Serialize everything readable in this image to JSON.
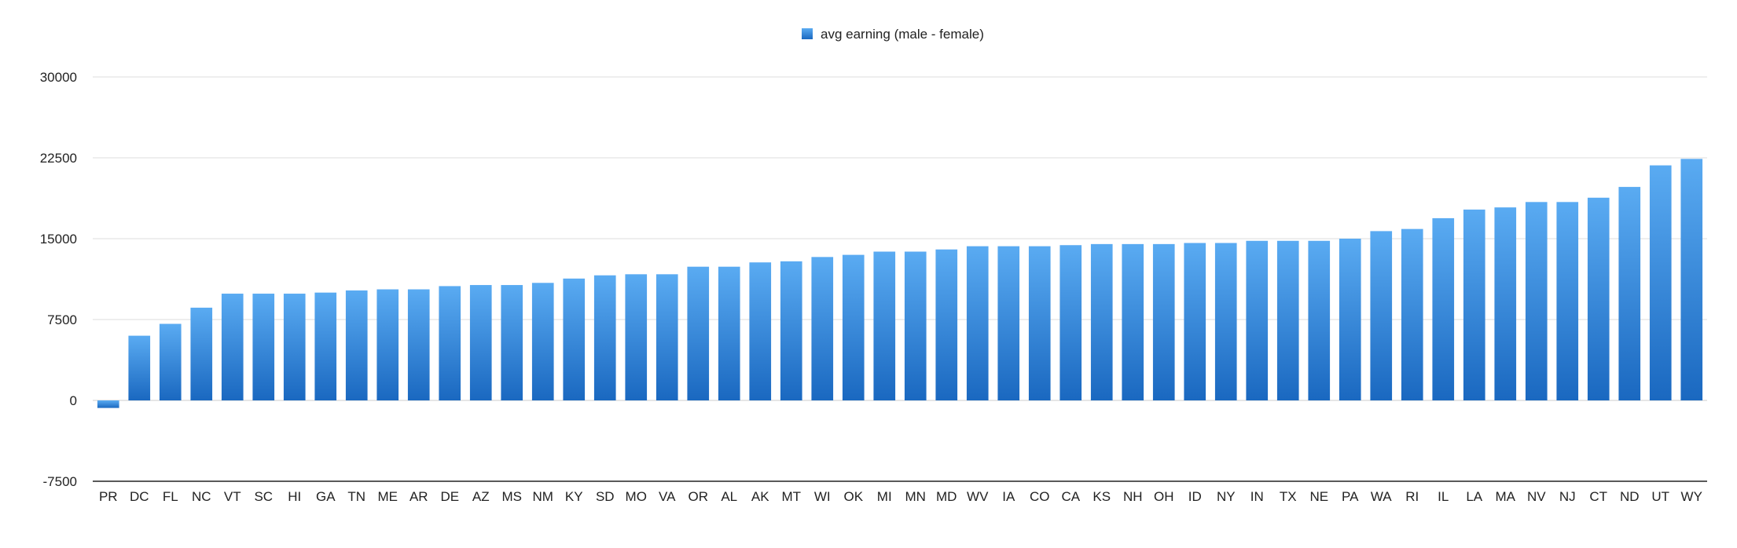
{
  "chart_data": {
    "type": "bar",
    "categories": [
      "PR",
      "DC",
      "FL",
      "NC",
      "VT",
      "SC",
      "HI",
      "GA",
      "TN",
      "ME",
      "AR",
      "DE",
      "AZ",
      "MS",
      "NM",
      "KY",
      "SD",
      "MO",
      "VA",
      "OR",
      "AL",
      "AK",
      "MT",
      "WI",
      "OK",
      "MI",
      "MN",
      "MD",
      "WV",
      "IA",
      "CO",
      "CA",
      "KS",
      "NH",
      "OH",
      "ID",
      "NY",
      "IN",
      "TX",
      "NE",
      "PA",
      "WA",
      "RI",
      "IL",
      "LA",
      "MA",
      "NV",
      "NJ",
      "CT",
      "ND",
      "UT",
      "WY"
    ],
    "series": [
      {
        "name": "avg earning (male - female)",
        "values": [
          -700,
          6000,
          7100,
          8600,
          9900,
          9900,
          9900,
          10000,
          10200,
          10300,
          10300,
          10600,
          10700,
          10700,
          10900,
          11300,
          11600,
          11700,
          11700,
          12400,
          12400,
          12800,
          12900,
          13300,
          13500,
          13800,
          13800,
          14000,
          14300,
          14300,
          14300,
          14400,
          14500,
          14500,
          14500,
          14600,
          14600,
          14800,
          14800,
          14800,
          15000,
          15700,
          15900,
          16900,
          17700,
          17900,
          18400,
          18400,
          18800,
          19800,
          21800,
          22400
        ]
      }
    ],
    "y_ticks": [
      "30000",
      "22500",
      "15000",
      "7500",
      "0",
      "-7500"
    ],
    "ylim": [
      -7500,
      30000
    ],
    "legend_position": "top-center",
    "grid": true,
    "colors": {
      "bar_top": "#5aabf2",
      "bar_bottom": "#1a68c0",
      "grid": "#dddddd",
      "axis": "#222222"
    }
  }
}
